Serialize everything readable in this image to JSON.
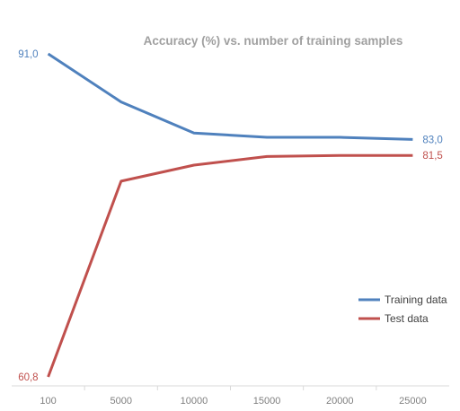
{
  "chart_data": {
    "type": "line",
    "title": "Accuracy (%) vs. number of training samples",
    "xlabel": "",
    "ylabel": "",
    "categories": [
      "100",
      "5000",
      "10000",
      "15000",
      "20000",
      "25000"
    ],
    "ylim": [
      60.8,
      91.0
    ],
    "grid": false,
    "legend_position": "right",
    "series": [
      {
        "name": "Training data",
        "color": "#4f81bd",
        "values": [
          91.0,
          86.5,
          83.6,
          83.2,
          83.2,
          83.0
        ],
        "labels": [
          {
            "index": 0,
            "text": "91,0",
            "side": "left"
          },
          {
            "index": 5,
            "text": "83,0",
            "side": "right"
          }
        ]
      },
      {
        "name": "Test data",
        "color": "#c0504d",
        "values": [
          60.8,
          79.1,
          80.6,
          81.4,
          81.5,
          81.5
        ],
        "labels": [
          {
            "index": 0,
            "text": "60,8",
            "side": "left"
          },
          {
            "index": 5,
            "text": "81,5",
            "side": "right"
          }
        ]
      }
    ]
  }
}
